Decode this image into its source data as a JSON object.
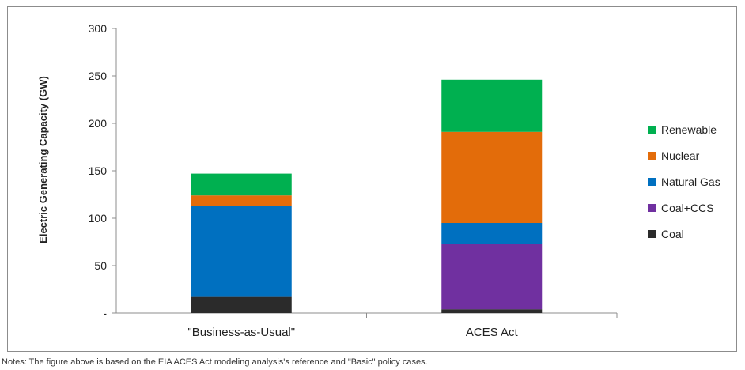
{
  "chart_data": {
    "type": "bar",
    "stacked": true,
    "title": "",
    "xlabel": "",
    "ylabel": "Electric Generating Capacity (GW)",
    "ylim": [
      0,
      300
    ],
    "yticks": [
      "-",
      "50",
      "100",
      "150",
      "200",
      "250",
      "300"
    ],
    "grid": false,
    "legend_position": "right",
    "categories": [
      "\"Business-as-Usual\"",
      "ACES Act"
    ],
    "series": [
      {
        "name": "Coal",
        "color": "#2b2b2b",
        "values": [
          17,
          4
        ]
      },
      {
        "name": "Coal+CCS",
        "color": "#7030a0",
        "values": [
          0,
          69
        ]
      },
      {
        "name": "Natural Gas",
        "color": "#0070c0",
        "values": [
          96,
          22
        ]
      },
      {
        "name": "Nuclear",
        "color": "#e36c0a",
        "values": [
          11,
          96
        ]
      },
      {
        "name": "Renewable",
        "color": "#00b050",
        "values": [
          23,
          55
        ]
      }
    ]
  },
  "notes": "Notes: The figure above is based on the EIA ACES Act modeling analysis's reference and \"Basic\" policy cases."
}
